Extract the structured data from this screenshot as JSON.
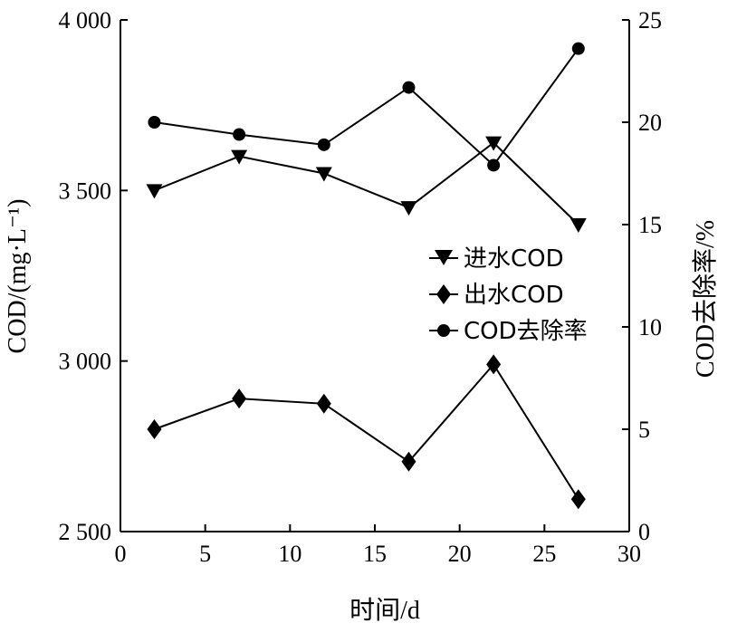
{
  "chart_data": {
    "type": "line",
    "title": "",
    "xlabel": "时间/d",
    "ylabel_left": "COD/(mg·L⁻¹)",
    "ylabel_right": "COD去除率/%",
    "xlim": [
      0,
      30
    ],
    "ylim_left": [
      2500,
      4000
    ],
    "ylim_right": [
      0,
      25
    ],
    "x_ticks": [
      0,
      5,
      10,
      15,
      20,
      25,
      30
    ],
    "y_left_ticks": [
      2500,
      3000,
      3500,
      4000
    ],
    "y_left_tick_labels": [
      "2 500",
      "3 000",
      "3 500",
      "4 000"
    ],
    "y_right_ticks": [
      0,
      5,
      10,
      15,
      20,
      25
    ],
    "grid": false,
    "legend_position": "right-center",
    "x": [
      2,
      7,
      12,
      17,
      22,
      27
    ],
    "series": [
      {
        "name": "进水COD",
        "axis": "left",
        "marker": "triangle-down",
        "values": [
          3500,
          3600,
          3550,
          3450,
          3640,
          3400
        ]
      },
      {
        "name": "出水COD",
        "axis": "left",
        "marker": "diamond",
        "values": [
          2800,
          2890,
          2875,
          2705,
          2990,
          2595
        ]
      },
      {
        "name": "COD去除率",
        "axis": "right",
        "marker": "circle",
        "values": [
          20.0,
          19.4,
          18.9,
          21.7,
          17.9,
          23.6
        ]
      }
    ]
  }
}
